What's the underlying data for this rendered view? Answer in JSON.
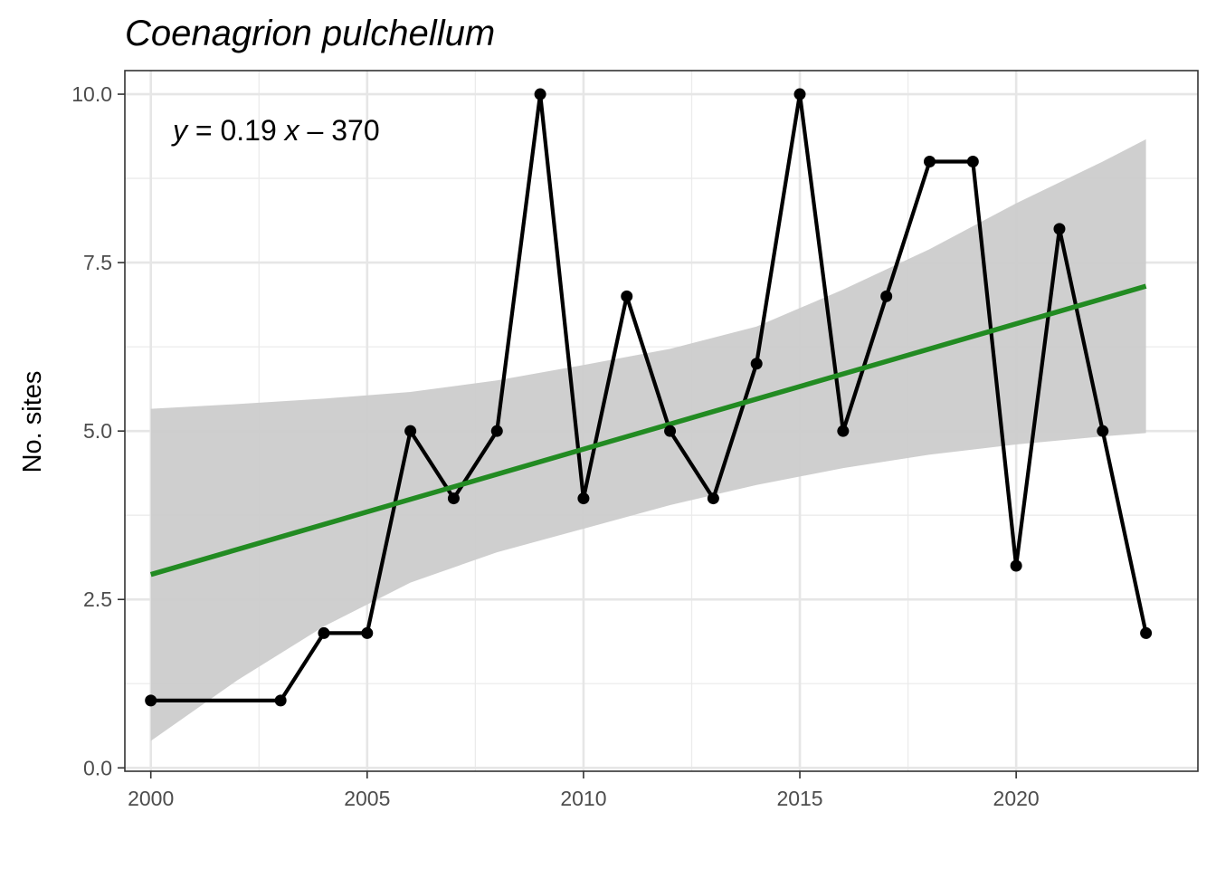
{
  "chart_data": {
    "type": "line",
    "title": "Coenagrion pulchellum",
    "xlabel": "",
    "ylabel": "No. sites",
    "xlim": [
      1999.4,
      2024.2
    ],
    "ylim": [
      -0.05,
      10.35
    ],
    "x_ticks": [
      2000,
      2005,
      2010,
      2015,
      2020
    ],
    "x_tick_labels": [
      "2000",
      "2005",
      "2010",
      "2015",
      "2020"
    ],
    "y_ticks": [
      0,
      2.5,
      5,
      7.5,
      10
    ],
    "y_tick_labels": [
      "0.0",
      "2.5",
      "5.0",
      "7.5",
      "10.0"
    ],
    "grid": true,
    "series": [
      {
        "color": "#000000",
        "x": [
          2000,
          2003,
          2004,
          2005,
          2006,
          2007,
          2008,
          2009,
          2010,
          2011,
          2012,
          2013,
          2014,
          2015,
          2016,
          2017,
          2018,
          2019,
          2020,
          2021,
          2022,
          2023
        ],
        "y": [
          1,
          1,
          2,
          2,
          5,
          4,
          5,
          10,
          4,
          7,
          5,
          4,
          6,
          10,
          5,
          7,
          9,
          9,
          3,
          8,
          5,
          2
        ]
      }
    ],
    "trend": {
      "color": "#228b22",
      "x": [
        2000,
        2023
      ],
      "y": [
        2.87,
        7.15
      ],
      "ribbon_color": "#cccccc",
      "ribbon": {
        "x": [
          2000,
          2002,
          2004,
          2006,
          2008,
          2010,
          2012,
          2014,
          2016,
          2018,
          2020,
          2022,
          2023
        ],
        "lower": [
          0.4,
          1.3,
          2.1,
          2.75,
          3.2,
          3.55,
          3.9,
          4.2,
          4.45,
          4.65,
          4.8,
          4.92,
          4.97
        ],
        "upper": [
          5.33,
          5.4,
          5.48,
          5.58,
          5.75,
          5.98,
          6.22,
          6.55,
          7.1,
          7.7,
          8.38,
          9.0,
          9.33
        ]
      }
    },
    "equation": {
      "y_var": "y",
      "eq_mid": " = 0.19 ",
      "x_var": "x",
      "eq_end": " – 370"
    }
  }
}
